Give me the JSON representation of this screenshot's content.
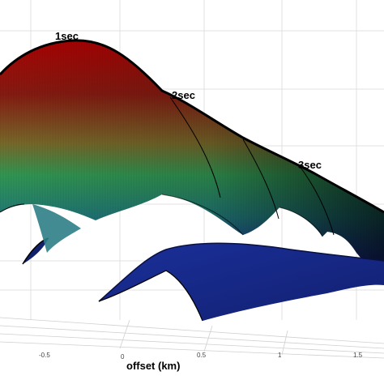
{
  "chart_data": {
    "type": "surface",
    "xlabel": "offset (km)",
    "ylabel": "",
    "title": "",
    "x_ticks": [
      "-0.5",
      "0",
      "0.5",
      "1",
      "1.5"
    ],
    "time_labels": [
      "1sec",
      "2sec",
      "3sec"
    ],
    "grid": true,
    "colormap": [
      "#a30000",
      "#2f9a52",
      "#1a2e9a"
    ]
  }
}
